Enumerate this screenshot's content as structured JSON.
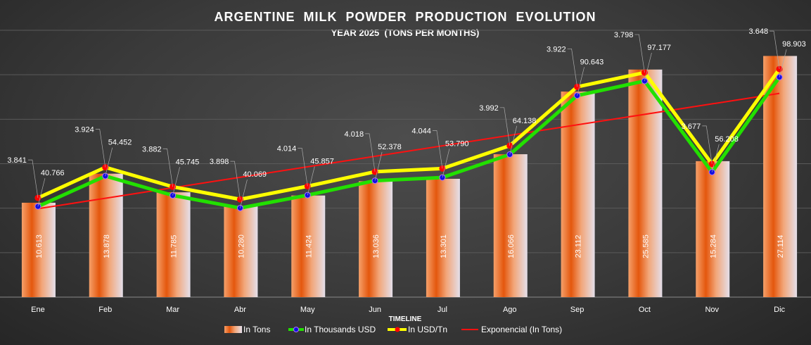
{
  "chart_data": {
    "type": "bar",
    "title": "ARGENTINE  MILK  POWDER  PRODUCTION  EVOLUTION",
    "subtitle": "YEAR 2025  (TONS PER MONTHS)",
    "xlabel": "TIMELINE",
    "categories": [
      "Ene",
      "Feb",
      "Mar",
      "Abr",
      "May",
      "Jun",
      "Jul",
      "Ago",
      "Sep",
      "Oct",
      "Nov",
      "Dic"
    ],
    "ylim": [
      0,
      30000
    ],
    "y2lim": [
      0,
      120000
    ],
    "grid": true,
    "legend_placement": "bottom",
    "series": [
      {
        "name": "In Tons",
        "type": "bar",
        "axis": "primary",
        "values": [
          10613,
          13878,
          11785,
          10280,
          11424,
          13036,
          13301,
          16066,
          23112,
          25585,
          15284,
          27114
        ],
        "labels": [
          "10.613",
          "13.878",
          "11.785",
          "10.280",
          "11.424",
          "13.036",
          "13.301",
          "16.066",
          "23.112",
          "25.585",
          "15.284",
          "27.114"
        ]
      },
      {
        "name": "In Thousands USD",
        "type": "line",
        "axis": "secondary",
        "color": "#22e000",
        "marker_color": "#1010e0",
        "values": [
          40766,
          54452,
          45745,
          40069,
          45857,
          52378,
          53790,
          64138,
          90643,
          97177,
          56208,
          98903
        ],
        "labels": [
          "40.766",
          "54.452",
          "45.745",
          "40.069",
          "45.857",
          "52.378",
          "53.790",
          "64.138",
          "90.643",
          "97.177",
          "56.208",
          "98.903"
        ]
      },
      {
        "name": "In USD/Tn",
        "type": "line",
        "axis": "secondary",
        "stacked": true,
        "color": "#ffff00",
        "marker_color": "#ff0000",
        "values": [
          3841,
          3924,
          3882,
          3898,
          4014,
          4018,
          4044,
          3992,
          3922,
          3798,
          3677,
          3648
        ],
        "labels": [
          "3.841",
          "3.924",
          "3.882",
          "3.898",
          "4.014",
          "4.018",
          "4.044",
          "3.992",
          "3.922",
          "3.798",
          "3.677",
          "3.648"
        ]
      },
      {
        "name": "Exponencial (In Tons)",
        "type": "trendline-exponential",
        "of": "In Tons",
        "color": "#ff1010"
      }
    ]
  }
}
